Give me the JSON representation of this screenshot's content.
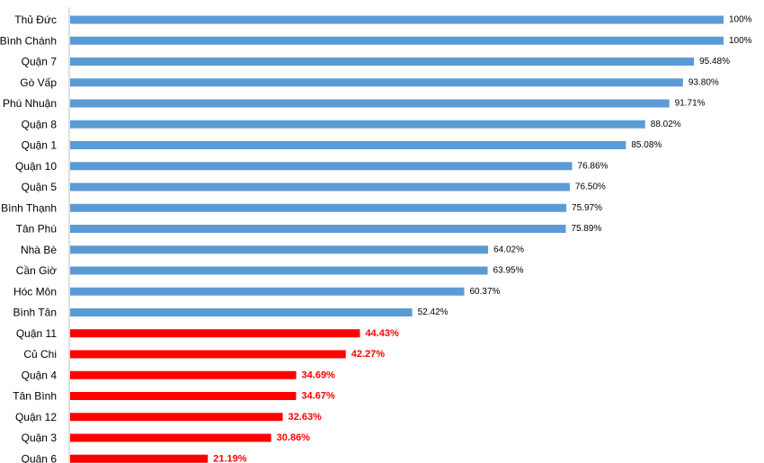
{
  "chart_data": {
    "type": "bar",
    "orientation": "horizontal",
    "title": "",
    "xlabel": "",
    "ylabel": "",
    "xlim": [
      0,
      100
    ],
    "grid": false,
    "categories": [
      "Thủ Đức",
      "Bình Chánh",
      "Quận 7",
      "Gò Vấp",
      "Phú Nhuận",
      "Quận 8",
      "Quận 1",
      "Quận 10",
      "Quận 5",
      "Bình Thạnh",
      "Tân Phú",
      "Nhà Bè",
      "Cần Giờ",
      "Hóc Môn",
      "Bình Tân",
      "Quận 11",
      "Củ Chi",
      "Quận 4",
      "Tân Bình",
      "Quận 12",
      "Quận 3",
      "Quận 6"
    ],
    "values": [
      100,
      100,
      95.48,
      93.8,
      91.71,
      88.02,
      85.08,
      76.86,
      76.5,
      75.97,
      75.89,
      64.02,
      63.95,
      60.37,
      52.42,
      44.43,
      42.27,
      34.69,
      34.67,
      32.63,
      30.86,
      21.19
    ],
    "value_labels": [
      "100%",
      "100%",
      "95.48%",
      "93.80%",
      "91.71%",
      "88.02%",
      "85.08%",
      "76.86%",
      "76.50%",
      "75.97%",
      "75.89%",
      "64.02%",
      "63.95%",
      "60.37%",
      "52.42%",
      "44.43%",
      "42.27%",
      "34.69%",
      "34.67%",
      "32.63%",
      "30.86%",
      "21.19%"
    ],
    "highlight": [
      false,
      false,
      false,
      false,
      false,
      false,
      false,
      false,
      false,
      false,
      false,
      false,
      false,
      false,
      false,
      true,
      true,
      true,
      true,
      true,
      true,
      true
    ],
    "colors": {
      "default": "#5b9bd5",
      "highlight": "#ff0000",
      "axis": "#bfbfbf"
    }
  }
}
